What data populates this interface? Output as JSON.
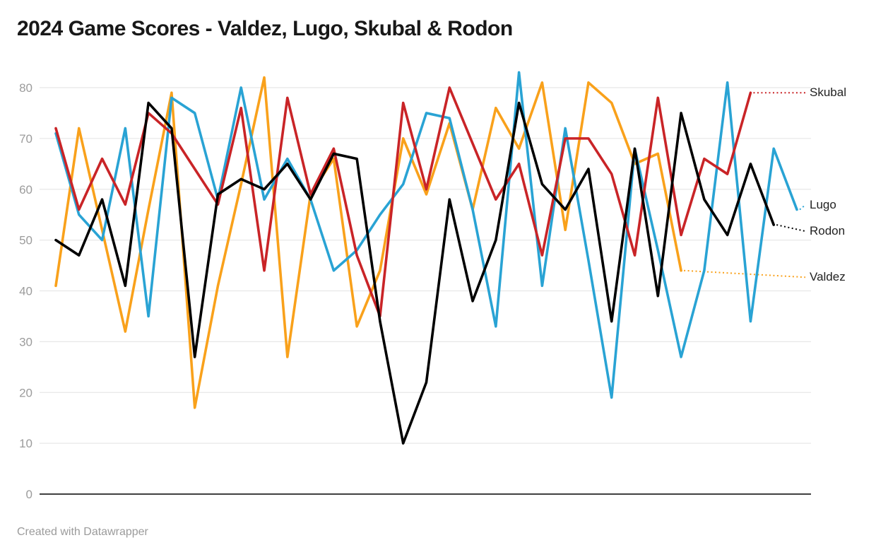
{
  "title": "2024 Game Scores - Valdez, Lugo, Skubal & Rodon",
  "footer_credit": "Created with Datawrapper",
  "chart_data": {
    "type": "line",
    "title": "2024 Game Scores - Valdez, Lugo, Skubal & Rodon",
    "xlabel": "",
    "ylabel": "",
    "x_unit": "game number",
    "x_count": 33,
    "ylim": [
      0,
      83
    ],
    "y_ticks": [
      0,
      10,
      20,
      30,
      40,
      50,
      60,
      70,
      80
    ],
    "grid": true,
    "legend_position": "right-edge-labels",
    "colors": {
      "skubal_red": "#c92427",
      "lugo_blue": "#29a3d4",
      "rodon_black": "#000000",
      "valdez_orange": "#f9a11b",
      "gridline": "#e8e8e8",
      "axis_zero_line": "#000000",
      "tick_label": "#9c9c9c",
      "series_label_text": "#222222"
    },
    "series": [
      {
        "name": "Valdez",
        "color": "#f9a11b",
        "values": [
          41,
          72,
          52,
          32,
          56,
          79,
          17,
          41,
          61,
          82,
          27,
          59,
          66,
          33,
          44,
          70,
          59,
          73,
          56,
          76,
          68,
          81,
          52,
          81,
          77,
          65,
          67,
          44
        ]
      },
      {
        "name": "Lugo",
        "color": "#29a3d4",
        "values": [
          71,
          55,
          50,
          72,
          35,
          78,
          75,
          58,
          80,
          58,
          66,
          58,
          44,
          48,
          55,
          61,
          75,
          74,
          56,
          33,
          83,
          41,
          72,
          46,
          19,
          68,
          48,
          27,
          44,
          81,
          34,
          68,
          56
        ]
      },
      {
        "name": "Skubal",
        "color": "#c92427",
        "values": [
          72,
          56,
          66,
          57,
          75,
          71,
          64,
          57,
          76,
          44,
          78,
          59,
          68,
          47,
          35,
          77,
          60,
          80,
          69,
          58,
          65,
          47,
          70,
          70,
          63,
          47,
          78,
          51,
          66,
          63,
          79
        ]
      },
      {
        "name": "Rodon",
        "color": "#000000",
        "values": [
          50,
          47,
          58,
          41,
          77,
          72,
          27,
          59,
          62,
          60,
          65,
          58,
          67,
          66,
          34,
          10,
          22,
          58,
          38,
          50,
          77,
          61,
          56,
          64,
          34,
          68,
          39,
          75,
          58,
          51,
          65,
          53
        ]
      }
    ]
  }
}
